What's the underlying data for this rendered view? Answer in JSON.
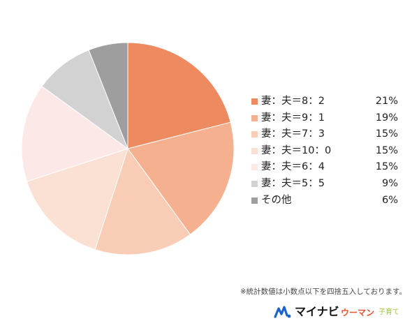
{
  "chart_data": {
    "type": "pie",
    "categories": [
      "妻：夫＝8：2",
      "妻：夫＝9：1",
      "妻：夫＝7：3",
      "妻：夫＝10：0",
      "妻：夫＝6：4",
      "妻：夫＝5：5",
      "その他"
    ],
    "values": [
      21,
      19,
      15,
      15,
      15,
      9,
      6
    ],
    "value_labels": [
      "21%",
      "19%",
      "15%",
      "15%",
      "15%",
      "9%",
      "6%"
    ],
    "colors": [
      "#ee8a5f",
      "#f5b090",
      "#f9ccb6",
      "#fbe0d4",
      "#fde8e8",
      "#d2d2d2",
      "#9e9e9e"
    ],
    "legend_position": "right",
    "start_angle": "12 o'clock",
    "direction": "clockwise"
  },
  "footnote": "※統計数値は小数点以下を四捨五入しております。",
  "logo": {
    "brand": "マイナビ",
    "sub1": "ウーマン",
    "sub2": "子育て",
    "mark_icon": "mynavi-logo-icon"
  }
}
